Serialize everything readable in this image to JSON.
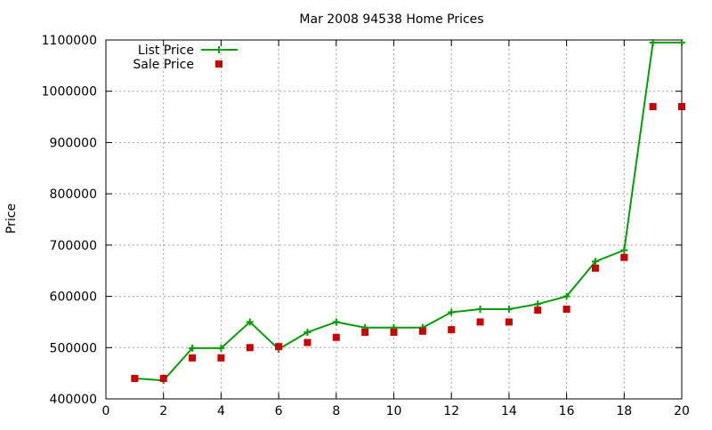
{
  "chart_data": {
    "type": "line",
    "title": "Mar 2008 94538 Home Prices",
    "xlabel": "",
    "ylabel": "Price",
    "xlim": [
      0,
      20
    ],
    "ylim": [
      400000,
      1100000
    ],
    "x_ticks": [
      0,
      2,
      4,
      6,
      8,
      10,
      12,
      14,
      16,
      18,
      20
    ],
    "y_ticks": [
      400000,
      500000,
      600000,
      700000,
      800000,
      900000,
      1000000,
      1100000
    ],
    "grid": true,
    "legend_position": "top-left",
    "series": [
      {
        "name": "List Price",
        "style": "line+plus",
        "color": "#00a000",
        "x": [
          1,
          2,
          3,
          4,
          5,
          6,
          7,
          8,
          9,
          10,
          11,
          12,
          13,
          14,
          15,
          16,
          17,
          18,
          19,
          20
        ],
        "values": [
          440000,
          436000,
          499000,
          499000,
          550000,
          497000,
          530000,
          550000,
          539000,
          539000,
          539000,
          569000,
          575000,
          575000,
          585000,
          600000,
          668000,
          690000,
          1095000,
          1095000
        ]
      },
      {
        "name": "Sale Price",
        "style": "square",
        "color": "#cc0000",
        "x": [
          1,
          2,
          3,
          4,
          5,
          6,
          7,
          8,
          9,
          10,
          11,
          12,
          13,
          14,
          15,
          16,
          17,
          18,
          19,
          20
        ],
        "values": [
          440000,
          440000,
          480000,
          480000,
          500000,
          502000,
          510000,
          520000,
          530000,
          530000,
          532000,
          535000,
          550000,
          550000,
          573000,
          575000,
          655000,
          676000,
          970000,
          970000
        ]
      }
    ]
  }
}
